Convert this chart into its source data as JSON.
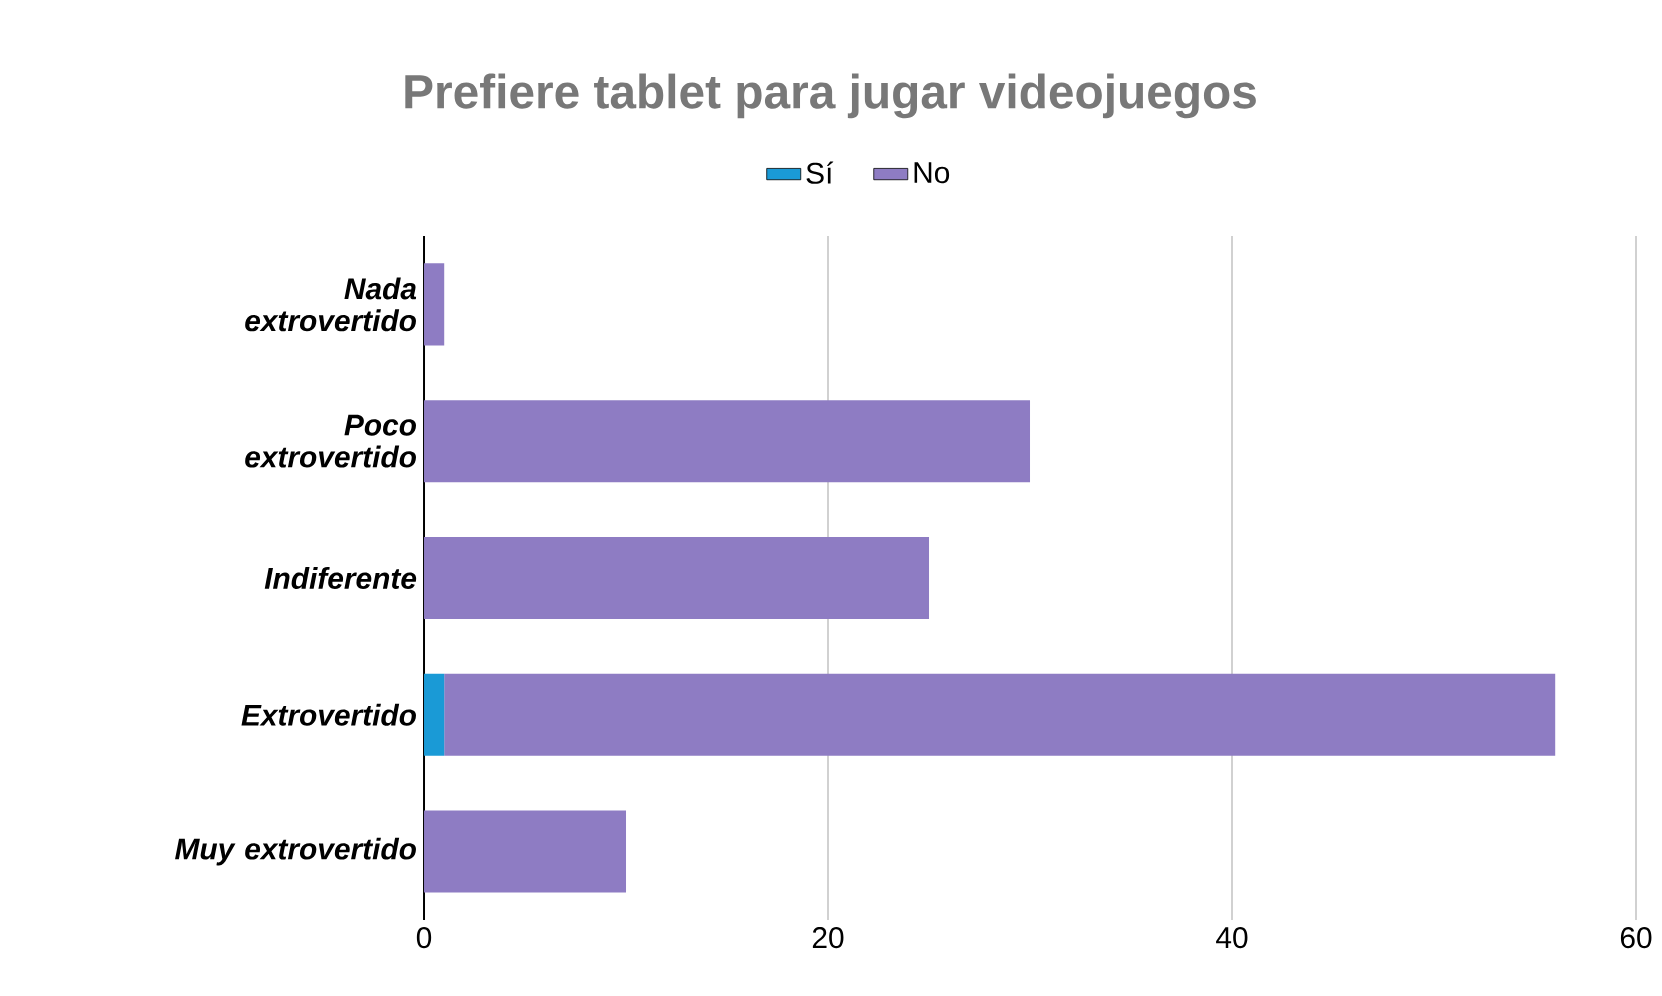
{
  "chart_data": {
    "type": "bar",
    "orientation": "horizontal",
    "stacked": true,
    "title": "Prefiere tablet para jugar videojuegos",
    "categories": [
      "Nada extrovertido",
      "Poco extrovertido",
      "Indiferente",
      "Extrovertido",
      "Muy extrovertido"
    ],
    "series": [
      {
        "name": "Sí",
        "color": "#1a9ad6",
        "values": [
          0,
          0,
          0,
          1,
          0
        ]
      },
      {
        "name": "No",
        "color": "#8e7cc3",
        "values": [
          1,
          30,
          25,
          55,
          10
        ]
      }
    ],
    "xlim": [
      0,
      60
    ],
    "xticks": [
      0,
      20,
      40,
      60
    ],
    "grid": "x",
    "legend": "top"
  }
}
